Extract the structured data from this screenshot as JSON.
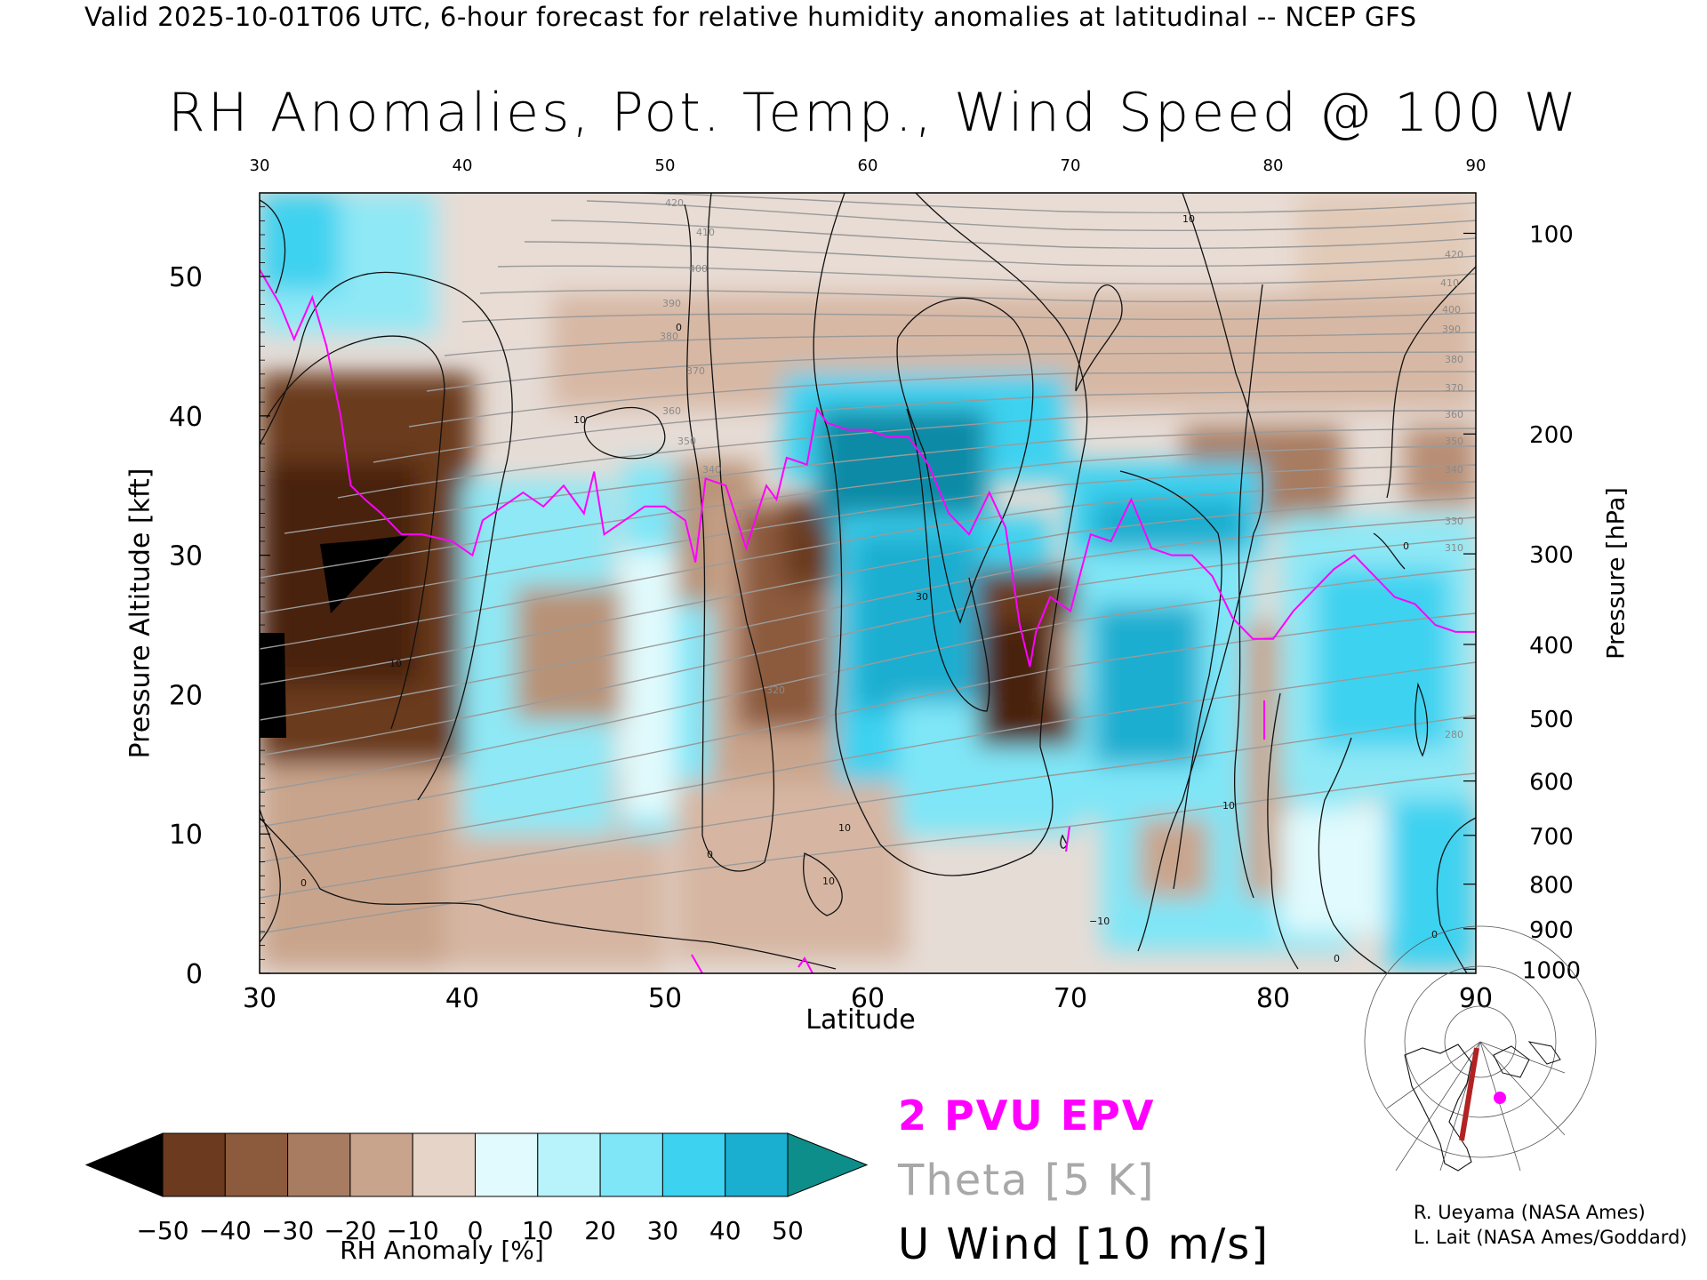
{
  "header": {
    "caption": "Valid 2025-10-01T06 UTC, 6-hour forecast for relative humidity anomalies at latitudinal -- NCEP GFS",
    "title": "RH Anomalies, Pot. Temp., Wind Speed @ 100 W"
  },
  "chart_data": {
    "type": "heatmap",
    "title": "RH Anomalies, Pot. Temp., Wind Speed @ 100 W",
    "xlabel": "Latitude",
    "ylabel": "Pressure Altitude [kft]",
    "ylabel_right": "Pressure [hPa]",
    "xlim": [
      30,
      90
    ],
    "ylim": [
      0,
      56
    ],
    "x_ticks": [
      "30",
      "40",
      "50",
      "60",
      "70",
      "80",
      "90"
    ],
    "y_ticks": [
      "0",
      "10",
      "20",
      "30",
      "40",
      "50"
    ],
    "pressure_ticks": [
      "100",
      "200",
      "300",
      "400",
      "500",
      "600",
      "700",
      "800",
      "900",
      "1000"
    ],
    "pressure_tick_kft": [
      53.1,
      38.7,
      30.1,
      23.6,
      18.3,
      13.8,
      9.9,
      6.4,
      3.2,
      0.3
    ],
    "grid": false,
    "colorbar": {
      "label": "RH Anomaly [%]",
      "tick_labels": [
        "−50",
        "−40",
        "−30",
        "−20",
        "−10",
        "0",
        "10",
        "20",
        "30",
        "40",
        "50"
      ],
      "bins": [
        -50,
        -40,
        -30,
        -20,
        -10,
        0,
        10,
        20,
        30,
        40,
        50
      ],
      "colors": [
        "#4a2410",
        "#6b3a1f",
        "#8c5a3c",
        "#a87c60",
        "#c9a48c",
        "#e6d4c8",
        "#e0fafd",
        "#b8f2fb",
        "#7fe6f7",
        "#3cd2f0",
        "#1aaed0",
        "#0f8aa6"
      ],
      "extend_low_color": "#000000",
      "extend_high_color": "#0e8e8a"
    },
    "epv_2pvu_curve": {
      "x": [
        30,
        31,
        31.7,
        32.6,
        33.3,
        34,
        34.5,
        35.2,
        36,
        37,
        38,
        39.5,
        40.5,
        41,
        42,
        43,
        44,
        45,
        46,
        46.5,
        47,
        48,
        49,
        50,
        51,
        51.5,
        52,
        53,
        54,
        55,
        55.5,
        56,
        57,
        57.5,
        58,
        59,
        60,
        61,
        62,
        63,
        64,
        65,
        66,
        66.8,
        67.5,
        68,
        68.3,
        69,
        70,
        71,
        72,
        73,
        74,
        75,
        76,
        77,
        78,
        79,
        80,
        81,
        82,
        83,
        84,
        85,
        86,
        87,
        88,
        89,
        90
      ],
      "y": [
        50.5,
        48,
        45.5,
        48.5,
        45,
        40,
        35,
        34,
        33,
        31.5,
        31.5,
        31,
        30,
        32.5,
        33.5,
        34.5,
        33.5,
        35,
        33,
        36,
        31.5,
        32.5,
        33.5,
        33.5,
        32.5,
        29.5,
        35.5,
        35,
        30.5,
        35,
        34,
        37,
        36.5,
        40.5,
        39.5,
        39,
        39,
        38.5,
        38.5,
        36.5,
        33,
        31.5,
        34.5,
        32,
        25,
        22,
        24.5,
        27,
        26,
        31.5,
        31,
        34,
        30.5,
        30,
        30,
        28.5,
        25.5,
        24,
        24,
        26,
        27.5,
        29,
        30,
        28.5,
        27,
        26.5,
        25,
        24.5,
        24.5
      ]
    },
    "u_wind_contour_labels": [
      "0",
      "10",
      "30",
      "-10"
    ],
    "theta_contour_labels": [
      "310",
      "330",
      "340",
      "350",
      "360",
      "370",
      "380",
      "390",
      "400",
      "410",
      "420"
    ],
    "legend": [
      "2 PVU EPV",
      "Theta [5 K]",
      "U Wind [10 m/s]"
    ],
    "colors": {
      "epv": "#ff00ff",
      "theta": "#9a9a9a",
      "uwind": "#000000"
    }
  },
  "legend": {
    "epv": "2 PVU EPV",
    "theta": "Theta [5 K]",
    "uwind": "U Wind [10 m/s]"
  },
  "credits": {
    "line1": "R. Ueyama (NASA Ames)",
    "line2": "L. Lait (NASA Ames/Goddard)"
  }
}
